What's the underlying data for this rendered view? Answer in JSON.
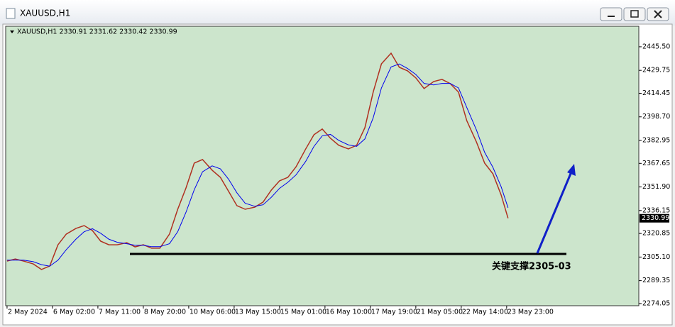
{
  "window_title": "XAUUSD,H1",
  "chart_data": {
    "type": "line",
    "header": "XAUUSD,H1  2330.91 2331.62 2330.42 2330.99",
    "x": [
      0,
      6,
      12,
      19,
      25,
      31,
      37,
      43,
      50,
      56,
      62,
      68,
      74,
      80,
      87,
      93,
      99,
      105,
      111,
      118,
      124,
      130,
      136,
      142,
      149,
      155,
      161,
      167,
      173,
      180,
      186,
      192,
      198,
      204,
      210,
      217,
      223,
      229,
      235,
      241,
      248,
      254,
      260,
      266,
      272,
      279,
      285,
      291,
      297,
      303,
      310,
      316,
      322,
      328,
      334,
      341,
      347,
      353,
      359,
      364
    ],
    "series": [
      {
        "color": "#b03020",
        "values": [
          2302.4,
          2303.8,
          2302.4,
          2300.5,
          2296.8,
          2299.1,
          2313.3,
          2320.4,
          2324.2,
          2326.1,
          2322.8,
          2315.7,
          2313.3,
          2313.3,
          2314.7,
          2311.9,
          2313.3,
          2311.0,
          2311.0,
          2320.4,
          2337.0,
          2351.2,
          2367.8,
          2370.2,
          2363.1,
          2358.3,
          2348.9,
          2339.4,
          2337.0,
          2338.4,
          2341.8,
          2349.8,
          2356.0,
          2358.3,
          2365.4,
          2377.3,
          2386.8,
          2390.6,
          2384.4,
          2379.7,
          2377.3,
          2379.7,
          2391.5,
          2415.2,
          2434.1,
          2441.2,
          2431.8,
          2429.4,
          2424.7,
          2417.6,
          2422.3,
          2423.7,
          2420.9,
          2415.2,
          2396.2,
          2382.0,
          2367.8,
          2360.7,
          2346.5,
          2330.99
        ]
      },
      {
        "color": "#0000ee",
        "values": [
          2303,
          2303,
          2303,
          2302,
          2300,
          2299,
          2303,
          2310,
          2317,
          2322,
          2324,
          2321,
          2317,
          2315,
          2314,
          2313,
          2313,
          2312,
          2312,
          2314,
          2322,
          2335,
          2350,
          2362,
          2366,
          2364,
          2357,
          2348,
          2341,
          2339,
          2340,
          2345,
          2351,
          2355,
          2360,
          2369,
          2379,
          2386,
          2387,
          2383,
          2380,
          2379,
          2384,
          2398,
          2418,
          2432,
          2434,
          2431,
          2427,
          2421,
          2420,
          2421,
          2421,
          2418,
          2405,
          2390,
          2375,
          2365,
          2352,
          2338
        ]
      }
    ],
    "xlim": [
      -1,
      459
    ],
    "xticks": [
      {
        "value": 0,
        "label": "2 May 2024"
      },
      {
        "value": 33,
        "label": "6 May 02:00"
      },
      {
        "value": 66,
        "label": "7 May 11:00"
      },
      {
        "value": 99,
        "label": "8 May 20:00"
      },
      {
        "value": 132,
        "label": "10 May 06:00"
      },
      {
        "value": 165,
        "label": "13 May 15:00"
      },
      {
        "value": 198,
        "label": "15 May 01:00"
      },
      {
        "value": 231,
        "label": "16 May 10:00"
      },
      {
        "value": 264,
        "label": "17 May 19:00"
      },
      {
        "value": 297,
        "label": "21 May 05:00"
      },
      {
        "value": 330,
        "label": "22 May 14:00"
      },
      {
        "value": 363,
        "label": "23 May 23:00"
      }
    ],
    "ylim": [
      2272.6,
      2459.2
    ],
    "yticks": [
      {
        "value": 2445.5,
        "label": "2445.50"
      },
      2429.75,
      2414.45,
      {
        "value": 2398.7,
        "label": "2398.70"
      },
      2382.95,
      2367.65,
      {
        "value": 2351.9,
        "label": "2351.90"
      },
      2336.15,
      2320.85,
      {
        "value": 2305.1,
        "label": "2305.10"
      },
      2289.35,
      2274.05
    ],
    "current_price": {
      "value": 2330.99,
      "label": "2330.99"
    },
    "annotation": "关键支撑2305-03",
    "background": "#cce5cc"
  }
}
